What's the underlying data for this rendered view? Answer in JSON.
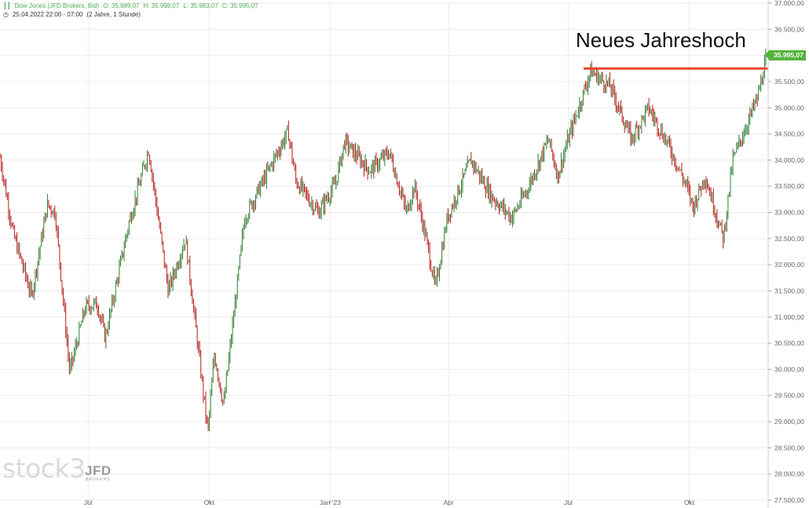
{
  "header": {
    "instrument": "Dow Jones (JFD Brokers, Bid)",
    "open": "O: 35.989,07",
    "high": "H: 35.998,07",
    "low": "L: 35.983,07",
    "close": "C: 35.995,07",
    "period": "25.04.2022 22:00 - 07:00",
    "range": "(2 Jahre, 1 Stunde)"
  },
  "annotation": {
    "text": "Neues Jahreshoch",
    "line_level": 35750,
    "line_color": "#e8472a"
  },
  "last_price": "35.995,07",
  "logo": {
    "stock": "stock3",
    "broker": "JFD",
    "broker_sub": "BROKERS"
  },
  "colors": {
    "up": "#2e7d32",
    "down": "#b71c1c",
    "accent": "#55b33b",
    "grid": "#ececec"
  },
  "chart_data": {
    "type": "line",
    "style": "ohlc-bars",
    "title": "Dow Jones (JFD Brokers, Bid)",
    "y_ticks": [
      "37.000,00",
      "36.500,00",
      "36.000,00",
      "35.500,00",
      "35.000,00",
      "34.500,00",
      "34.000,00",
      "33.500,00",
      "33.000,00",
      "32.500,00",
      "32.000,00",
      "31.500,00",
      "31.000,00",
      "30.500,00",
      "30.000,00",
      "29.500,00",
      "29.000,00",
      "28.500,00",
      "28.000,00",
      "27.500,00"
    ],
    "y_tick_values": [
      37000,
      36500,
      36000,
      35500,
      35000,
      34500,
      34000,
      33500,
      33000,
      32500,
      32000,
      31500,
      31000,
      30500,
      30000,
      29500,
      29000,
      28500,
      28000,
      27500
    ],
    "ylim": [
      27500,
      37000
    ],
    "x_ticks": [
      "Jul",
      "Okt",
      "Jan '23",
      "Apr",
      "Jul",
      "Okt"
    ],
    "x_tick_dates": [
      "2022-07-01",
      "2022-10-01",
      "2023-01-01",
      "2023-04-01",
      "2023-07-01",
      "2023-10-01"
    ],
    "xlim": [
      "2022-04-25",
      "2023-11-30"
    ],
    "grid": true,
    "series": [
      {
        "x": [
          "2022-04-25",
          "2022-05-05",
          "2022-05-19",
          "2022-05-31",
          "2022-06-06",
          "2022-06-17",
          "2022-06-29",
          "2022-07-08",
          "2022-07-14",
          "2022-08-01",
          "2022-08-16",
          "2022-08-31",
          "2022-09-13",
          "2022-09-30",
          "2022-10-05",
          "2022-10-12",
          "2022-10-28",
          "2022-11-15",
          "2022-11-30",
          "2022-12-06",
          "2022-12-23",
          "2023-01-05",
          "2023-01-12",
          "2023-01-31",
          "2023-02-15",
          "2023-02-28",
          "2023-03-06",
          "2023-03-15",
          "2023-03-22",
          "2023-03-31",
          "2023-04-18",
          "2023-05-04",
          "2023-05-19",
          "2023-05-31",
          "2023-06-16",
          "2023-06-23",
          "2023-07-01",
          "2023-07-18",
          "2023-08-02",
          "2023-08-18",
          "2023-08-31",
          "2023-09-15",
          "2023-09-29",
          "2023-10-04",
          "2023-10-13",
          "2023-10-27",
          "2023-11-03",
          "2023-11-22",
          "2023-11-29"
        ],
        "y": [
          34050,
          32600,
          31400,
          33150,
          33000,
          29950,
          31200,
          31250,
          30600,
          32800,
          34200,
          31500,
          32500,
          28800,
          30300,
          29300,
          32900,
          33800,
          34550,
          33600,
          33000,
          33550,
          34350,
          33800,
          34150,
          33000,
          33500,
          32500,
          31550,
          32900,
          34000,
          33300,
          32900,
          33450,
          34400,
          33700,
          34400,
          35700,
          35400,
          34400,
          35000,
          34300,
          33500,
          33100,
          33700,
          32500,
          34000,
          35200,
          35995
        ]
      }
    ]
  }
}
